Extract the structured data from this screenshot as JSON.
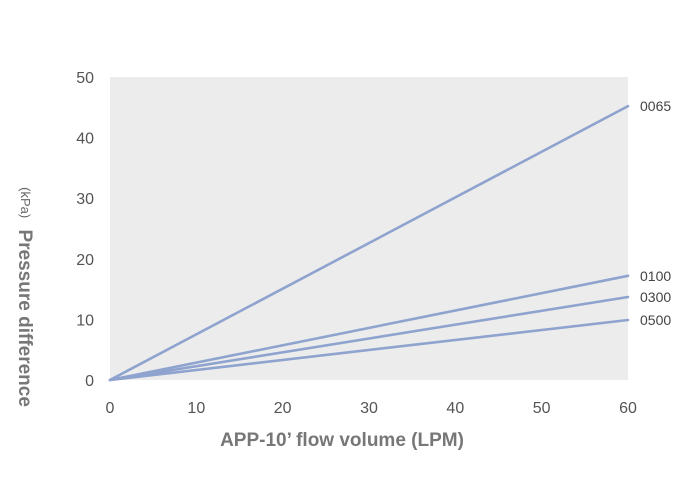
{
  "chart_data": {
    "type": "line",
    "xlabel": "APP-10’ flow volume (LPM)",
    "ylabel": "Pressure difference",
    "ylabel_unit": "(kPa)",
    "xlim": [
      0,
      60
    ],
    "ylim": [
      0,
      50
    ],
    "x_ticks": [
      "0",
      "10",
      "20",
      "30",
      "40",
      "50",
      "60"
    ],
    "y_ticks": [
      "0",
      "10",
      "20",
      "30",
      "40",
      "50"
    ],
    "grid": false,
    "plot_background": "#ececec",
    "line_color": "#8fa3cf",
    "series": [
      {
        "name": "0065",
        "x": [
          0,
          60
        ],
        "y": [
          0,
          45.2
        ]
      },
      {
        "name": "0100",
        "x": [
          0,
          60
        ],
        "y": [
          0,
          17.2
        ]
      },
      {
        "name": "0300",
        "x": [
          0,
          60
        ],
        "y": [
          0,
          13.7
        ]
      },
      {
        "name": "0500",
        "x": [
          0,
          60
        ],
        "y": [
          0,
          9.9
        ]
      }
    ]
  }
}
